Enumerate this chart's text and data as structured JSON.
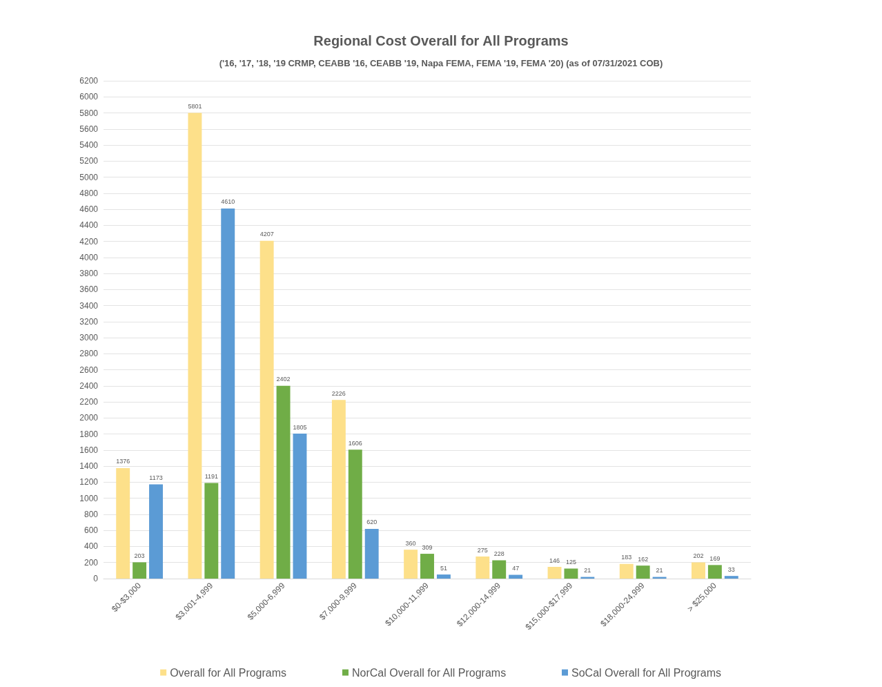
{
  "chart_data": {
    "type": "bar",
    "title": "Regional Cost Overall for All Programs",
    "subtitle": "('16, '17, '18, '19 CRMP, CEABB '16, CEABB '19, Napa FEMA, FEMA '19, FEMA '20) (as of 07/31/2021 COB)",
    "categories": [
      "$0-$3,000",
      "$3,001-4,999",
      "$5,000-6,999",
      "$7,000-9,999",
      "$10,000-11,999",
      "$12,000-14,999",
      "$15,000-$17,999",
      "$18,000-24,999",
      "> $25,000"
    ],
    "series": [
      {
        "name": "Overall for All Programs",
        "color": "#fde08a",
        "values": [
          1376,
          5801,
          4207,
          2226,
          360,
          275,
          146,
          183,
          202
        ]
      },
      {
        "name": "NorCal Overall for All Programs",
        "color": "#70ad47",
        "values": [
          203,
          1191,
          2402,
          1606,
          309,
          228,
          125,
          162,
          169
        ]
      },
      {
        "name": "SoCal Overall for All Programs",
        "color": "#5b9bd5",
        "values": [
          1173,
          4610,
          1805,
          620,
          51,
          47,
          21,
          21,
          33
        ]
      }
    ],
    "ylim": [
      0,
      6200
    ],
    "yticks": [
      0,
      200,
      400,
      600,
      800,
      1000,
      1200,
      1400,
      1600,
      1800,
      2000,
      2200,
      2400,
      2600,
      2800,
      3000,
      3200,
      3400,
      3600,
      3800,
      4000,
      4200,
      4400,
      4600,
      4800,
      5000,
      5200,
      5400,
      5600,
      5800,
      6000,
      6200
    ],
    "grid": "y",
    "legend": "bottom",
    "data_labels": true
  }
}
